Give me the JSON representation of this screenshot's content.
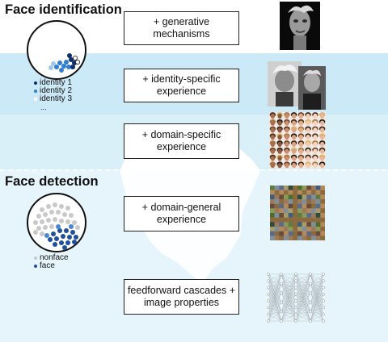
{
  "sections": {
    "identification_title": "Face identification",
    "detection_title": "Face detection"
  },
  "stages": [
    {
      "label": "+ generative\nmechanisms"
    },
    {
      "label": "+ identity-specific\nexperience"
    },
    {
      "label": "+ domain-specific\nexperience"
    },
    {
      "label": "+ domain-general\nexperience"
    },
    {
      "label": "feedforward cascades +\nimage properties"
    }
  ],
  "identity_legend": [
    {
      "label": "identity 1",
      "color": "#0d2d6b"
    },
    {
      "label": "identity 2",
      "color": "#2f7fd1"
    },
    {
      "label": "identity 3",
      "color": "#ffffff"
    }
  ],
  "identity_more": "...",
  "detection_legend": [
    {
      "label": "nonface",
      "color": "#c9c9c9"
    },
    {
      "label": "face",
      "color": "#1f4f9e"
    }
  ],
  "colors": {
    "band_top": "#ffffff",
    "band_light": "#cbe9f6",
    "band_mid": "#d9f0f9",
    "band_water": "#e6f5fb",
    "iceberg": "#ffffff"
  },
  "icons": [
    "face-sculpture-image",
    "einstein-photos-image",
    "face-grid-image",
    "natural-images-collage-image",
    "neural-network-icon"
  ]
}
